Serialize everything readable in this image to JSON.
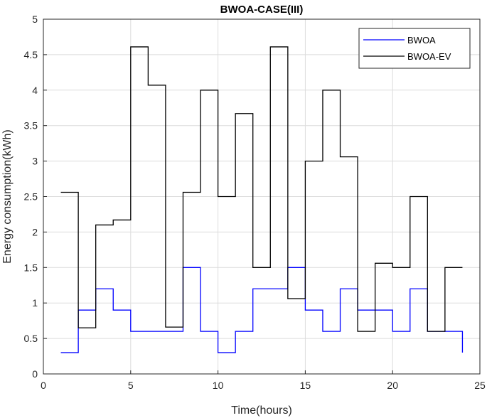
{
  "chart_data": {
    "type": "line",
    "style": "stairs",
    "title": "BWOA-CASE(III)",
    "xlabel": "Time(hours)",
    "ylabel": "Energy consumption(kWh)",
    "xlim": [
      0,
      25
    ],
    "ylim": [
      0,
      5
    ],
    "xticks": [
      0,
      5,
      10,
      15,
      20,
      25
    ],
    "yticks": [
      0,
      0.5,
      1,
      1.5,
      2,
      2.5,
      3,
      3.5,
      4,
      4.5,
      5
    ],
    "grid": true,
    "legend_location": "top-right",
    "x": [
      1,
      2,
      3,
      4,
      5,
      6,
      7,
      8,
      9,
      10,
      11,
      12,
      13,
      14,
      15,
      16,
      17,
      18,
      19,
      20,
      21,
      22,
      23,
      24
    ],
    "series": [
      {
        "name": "BWOA",
        "color": "#0000ff",
        "values": [
          0.3,
          0.9,
          1.2,
          0.9,
          0.6,
          0.6,
          0.6,
          1.5,
          0.6,
          0.3,
          0.6,
          1.2,
          1.2,
          1.5,
          0.9,
          0.6,
          1.2,
          0.9,
          0.9,
          0.6,
          1.2,
          0.6,
          0.6,
          0.3
        ]
      },
      {
        "name": "BWOA-EV",
        "color": "#000000",
        "values": [
          2.56,
          0.65,
          2.1,
          2.17,
          4.61,
          4.07,
          0.66,
          2.56,
          4.0,
          2.5,
          3.67,
          1.5,
          4.61,
          1.06,
          3.0,
          4.0,
          3.06,
          0.6,
          1.56,
          1.5,
          2.5,
          0.6,
          1.5,
          1.5
        ]
      }
    ]
  }
}
